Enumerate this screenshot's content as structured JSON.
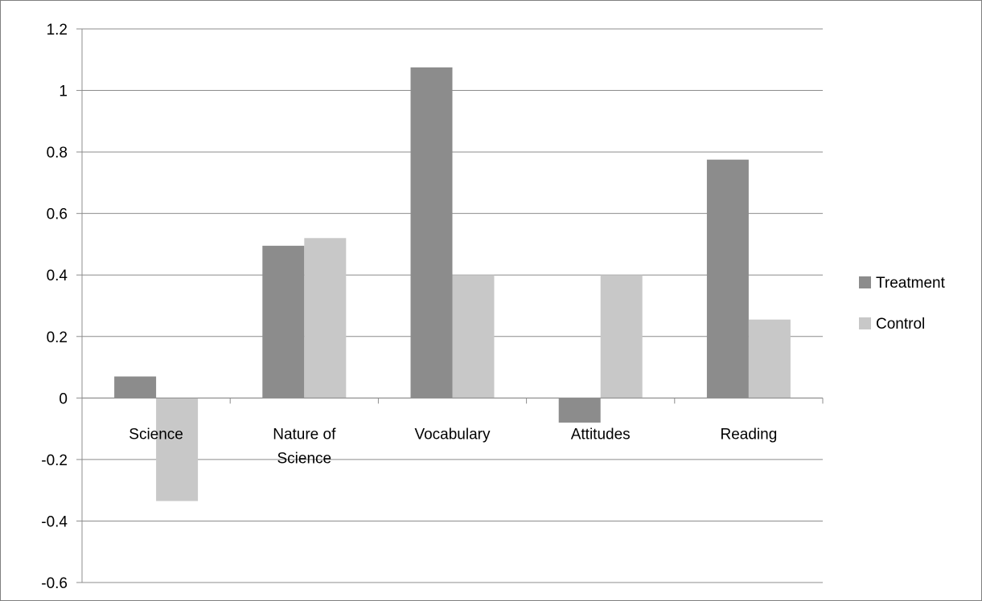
{
  "chart_data": {
    "type": "bar",
    "title": "",
    "xlabel": "",
    "ylabel": "",
    "categories": [
      [
        "Science"
      ],
      [
        "Nature of",
        "Science"
      ],
      [
        "Vocabulary"
      ],
      [
        "Attitudes"
      ],
      [
        "Reading"
      ]
    ],
    "series": [
      {
        "name": "Treatment",
        "color": "#8c8c8c",
        "values": [
          0.07,
          0.495,
          1.075,
          -0.08,
          0.775
        ]
      },
      {
        "name": "Control",
        "color": "#c8c8c8",
        "values": [
          -0.335,
          0.52,
          0.4,
          0.4,
          0.255
        ]
      }
    ],
    "ylim": [
      -0.6,
      1.2
    ],
    "yticks": [
      "-0.6",
      "-0.4",
      "-0.2",
      "0",
      "0.2",
      "0.4",
      "0.6",
      "0.8",
      "1",
      "1.2"
    ],
    "grid": true,
    "gridline_color": "#8c8c8c",
    "legend_position": "right"
  }
}
